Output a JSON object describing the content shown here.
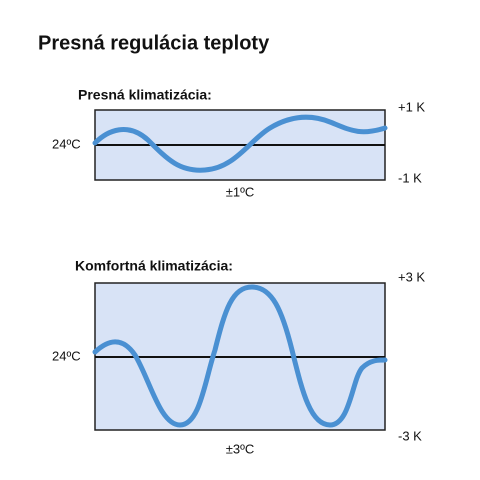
{
  "header": {
    "title": "Presná regulácia teploty"
  },
  "panels": [
    {
      "label": "Presná klimatizácia:",
      "center_label": "24ºC",
      "top_label": "+1 K",
      "bottom_label": "-1 K",
      "range_label": "±1ºC"
    },
    {
      "label": "Komfortná klimatizácia:",
      "center_label": "24ºC",
      "top_label": "+3 K",
      "bottom_label": "-3 K",
      "range_label": "±3ºC"
    }
  ]
}
